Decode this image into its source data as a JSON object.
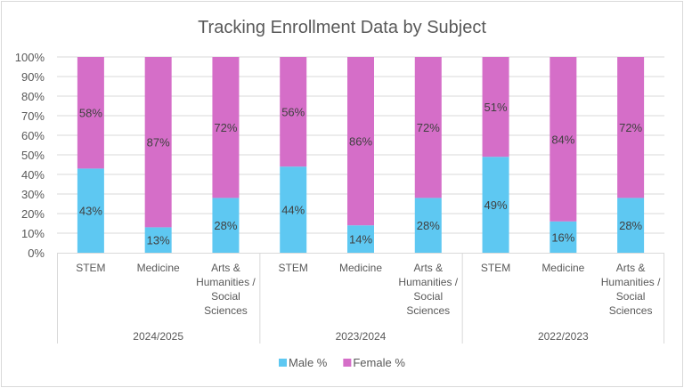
{
  "chart_data": {
    "type": "bar",
    "stacked": "percent",
    "title": "Tracking Enrollment Data by Subject",
    "xlabel": "",
    "ylabel": "",
    "ylim": [
      0,
      100
    ],
    "y_ticks": [
      "0%",
      "10%",
      "20%",
      "30%",
      "40%",
      "50%",
      "60%",
      "70%",
      "80%",
      "90%",
      "100%"
    ],
    "grid": true,
    "legend_position": "bottom",
    "groups": [
      {
        "label": "2024/2025",
        "categories": [
          {
            "label": [
              "STEM"
            ],
            "male": 43,
            "female": 58
          },
          {
            "label": [
              "Medicine"
            ],
            "male": 13,
            "female": 87
          },
          {
            "label": [
              "Arts &",
              "Humanities /",
              "Social",
              "Sciences"
            ],
            "male": 28,
            "female": 72
          }
        ]
      },
      {
        "label": "2023/2024",
        "categories": [
          {
            "label": [
              "STEM"
            ],
            "male": 44,
            "female": 56
          },
          {
            "label": [
              "Medicine"
            ],
            "male": 14,
            "female": 86
          },
          {
            "label": [
              "Arts &",
              "Humanities /",
              "Social",
              "Sciences"
            ],
            "male": 28,
            "female": 72
          }
        ]
      },
      {
        "label": "2022/2023",
        "categories": [
          {
            "label": [
              "STEM"
            ],
            "male": 49,
            "female": 51
          },
          {
            "label": [
              "Medicine"
            ],
            "male": 16,
            "female": 84
          },
          {
            "label": [
              "Arts &",
              "Humanities /",
              "Social",
              "Sciences"
            ],
            "male": 28,
            "female": 72
          }
        ]
      }
    ],
    "series": [
      {
        "name": "Male %",
        "key": "male",
        "color": "#5ec8f2"
      },
      {
        "name": "Female %",
        "key": "female",
        "color": "#d56ec8"
      }
    ]
  }
}
